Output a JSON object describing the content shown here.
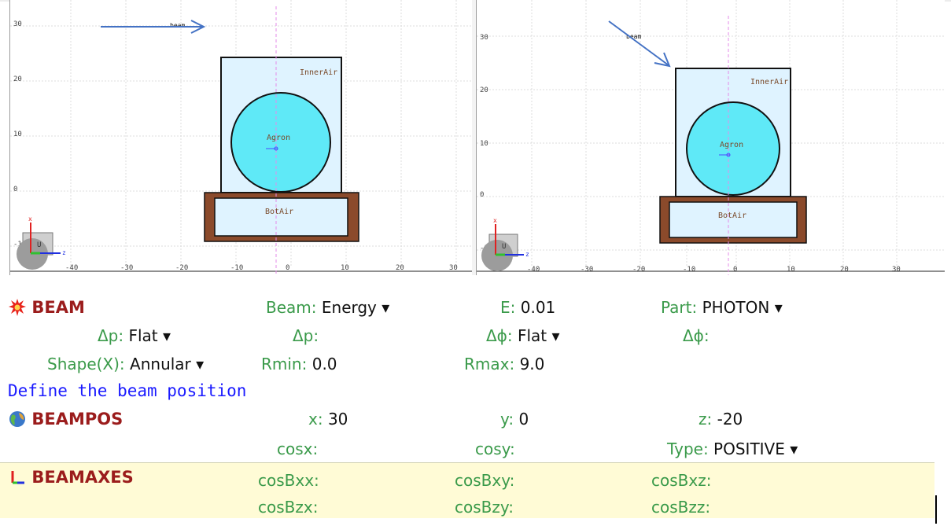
{
  "viewport_left": {
    "y_ticks": [
      "30",
      "20",
      "10",
      "0",
      "-10"
    ],
    "x_ticks": [
      "-40",
      "-30",
      "-20",
      "-10",
      "0",
      "10",
      "20",
      "30"
    ],
    "beam_label": "beam",
    "region_inner": "InnerAir",
    "region_argon": "Agron",
    "region_bot": "BotAir",
    "axis_x": "x",
    "axis_z": "z",
    "cube_label": "U"
  },
  "viewport_right": {
    "y_ticks": [
      "30",
      "20",
      "10",
      "0",
      "-10"
    ],
    "x_ticks": [
      "-40",
      "-30",
      "-20",
      "-10",
      "0",
      "10",
      "20",
      "30"
    ],
    "beam_label": "beam",
    "region_inner": "InnerAir",
    "region_argon": "Agron",
    "region_bot": "BotAir",
    "axis_x": "x",
    "axis_z": "z",
    "cube_label": "U"
  },
  "colors": {
    "argon": "#5fe9f7",
    "inner_air": "#dff3ff",
    "brick": "#8b4a2b",
    "arrow": "#4472c4",
    "label_green": "#3a9a4a",
    "card_red": "#9b1c1c",
    "comment_blue": "#1a1aff",
    "axes_band": "#fffbd6"
  },
  "beam": {
    "card": "BEAM",
    "icon": "explosion-icon",
    "beam_label": "Beam:",
    "beam_value": "Energy ▾",
    "e_label": "E:",
    "e_value": "0.01",
    "part_label": "Part:",
    "part_value": "PHOTON ▾",
    "dp_label": "Δp:",
    "dp_value": "Flat ▾",
    "dp2_label": "Δp:",
    "dphi_label": "Δϕ:",
    "dphi_value": "Flat ▾",
    "dphi2_label": "Δϕ:",
    "shape_label": "Shape(X):",
    "shape_value": "Annular ▾",
    "rmin_label": "Rmin:",
    "rmin_value": "0.0",
    "rmax_label": "Rmax:",
    "rmax_value": "9.0"
  },
  "comment": "Define the beam position",
  "beampos": {
    "card": "BEAMPOS",
    "icon": "globe-icon",
    "x_label": "x:",
    "x_value": "30",
    "y_label": "y:",
    "y_value": "0",
    "z_label": "z:",
    "z_value": "-20",
    "cosx_label": "cosx:",
    "cosy_label": "cosy:",
    "type_label": "Type:",
    "type_value": "POSITIVE ▾"
  },
  "beamaxes": {
    "card": "BEAMAXES",
    "icon": "axes-icon",
    "cosbxx": "cosBxx:",
    "cosbxy": "cosBxy:",
    "cosbxz": "cosBxz:",
    "cosbzx": "cosBzx:",
    "cosbzy": "cosBzy:",
    "cosbzz": "cosBzz:"
  }
}
